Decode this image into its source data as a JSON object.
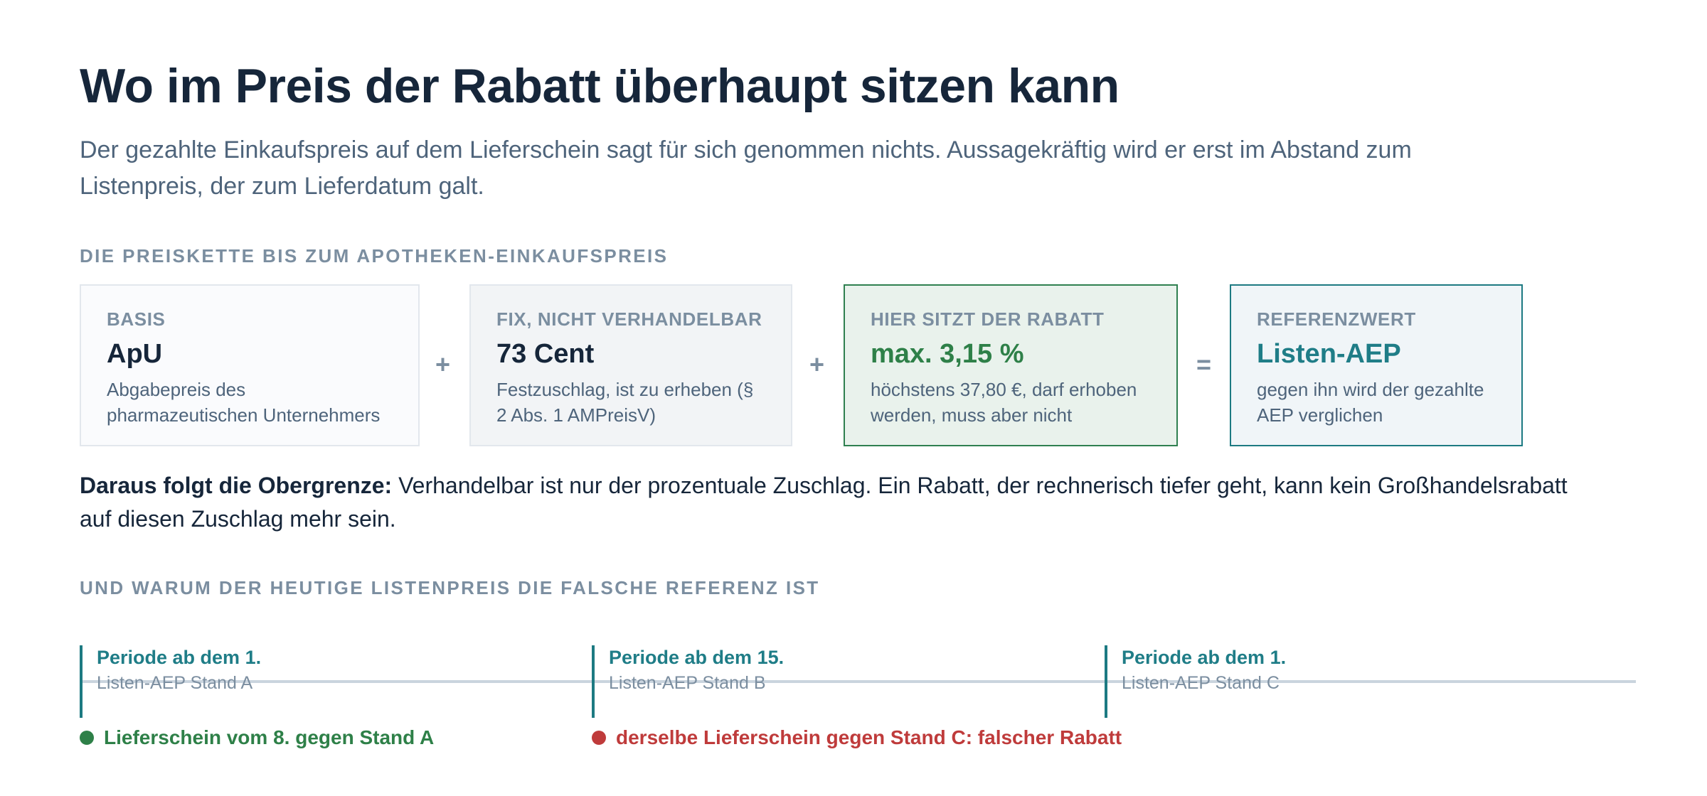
{
  "header": {
    "title": "Wo im Preis der Rabatt überhaupt sitzen kann",
    "subtitle": "Der gezahlte Einkaufspreis auf dem Lieferschein sagt für sich genommen nichts. Aussagekräftig wird er erst im Abstand zum Listenpreis, der zum Lieferdatum galt."
  },
  "chain": {
    "label": "DIE PREISKETTE BIS ZUM APOTHEKEN-EINKAUFSPREIS",
    "boxes": [
      {
        "kicker": "BASIS",
        "value": "ApU",
        "desc": "Abgabepreis des pharmazeutischen Unternehmers"
      },
      {
        "kicker": "FIX, NICHT VERHANDELBAR",
        "value": "73 Cent",
        "desc": "Festzuschlag, ist zu erheben (§ 2 Abs. 1 AMPreisV)"
      },
      {
        "kicker": "HIER SITZT DER RABATT",
        "value": "max. 3,15 %",
        "desc": "höchstens 37,80 €, darf erhoben werden, muss aber nicht"
      },
      {
        "kicker": "REFERENZWERT",
        "value": "Listen-AEP",
        "desc": "gegen ihn wird der gezahlte AEP verglichen"
      }
    ],
    "operators": [
      "+",
      "+",
      "="
    ],
    "colors": {
      "highlight": "#2e8048",
      "reference": "#1f7d87"
    }
  },
  "conclusion": {
    "lead": "Daraus folgt die Obergrenze:",
    "text": " Verhandelbar ist nur der prozentuale Zuschlag. Ein Rabatt, der rechnerisch tiefer geht, kann kein Großhandelsrabatt auf diesen Zuschlag mehr sein."
  },
  "timeline": {
    "label": "UND WARUM DER HEUTIGE LISTENPREIS DIE FALSCHE REFERENZ IST",
    "periods": [
      {
        "title": "Periode ab dem 1.",
        "subtitle": "Listen-AEP Stand A"
      },
      {
        "title": "Periode ab dem 15.",
        "subtitle": "Listen-AEP Stand B"
      },
      {
        "title": "Periode ab dem 1.",
        "subtitle": "Listen-AEP Stand C"
      }
    ],
    "markers": [
      {
        "text": "Lieferschein vom 8. gegen Stand A",
        "color": "#2e8048"
      },
      {
        "text": "derselbe Lieferschein gegen Stand C: falscher Rabatt",
        "color": "#bf3b3b"
      }
    ]
  }
}
